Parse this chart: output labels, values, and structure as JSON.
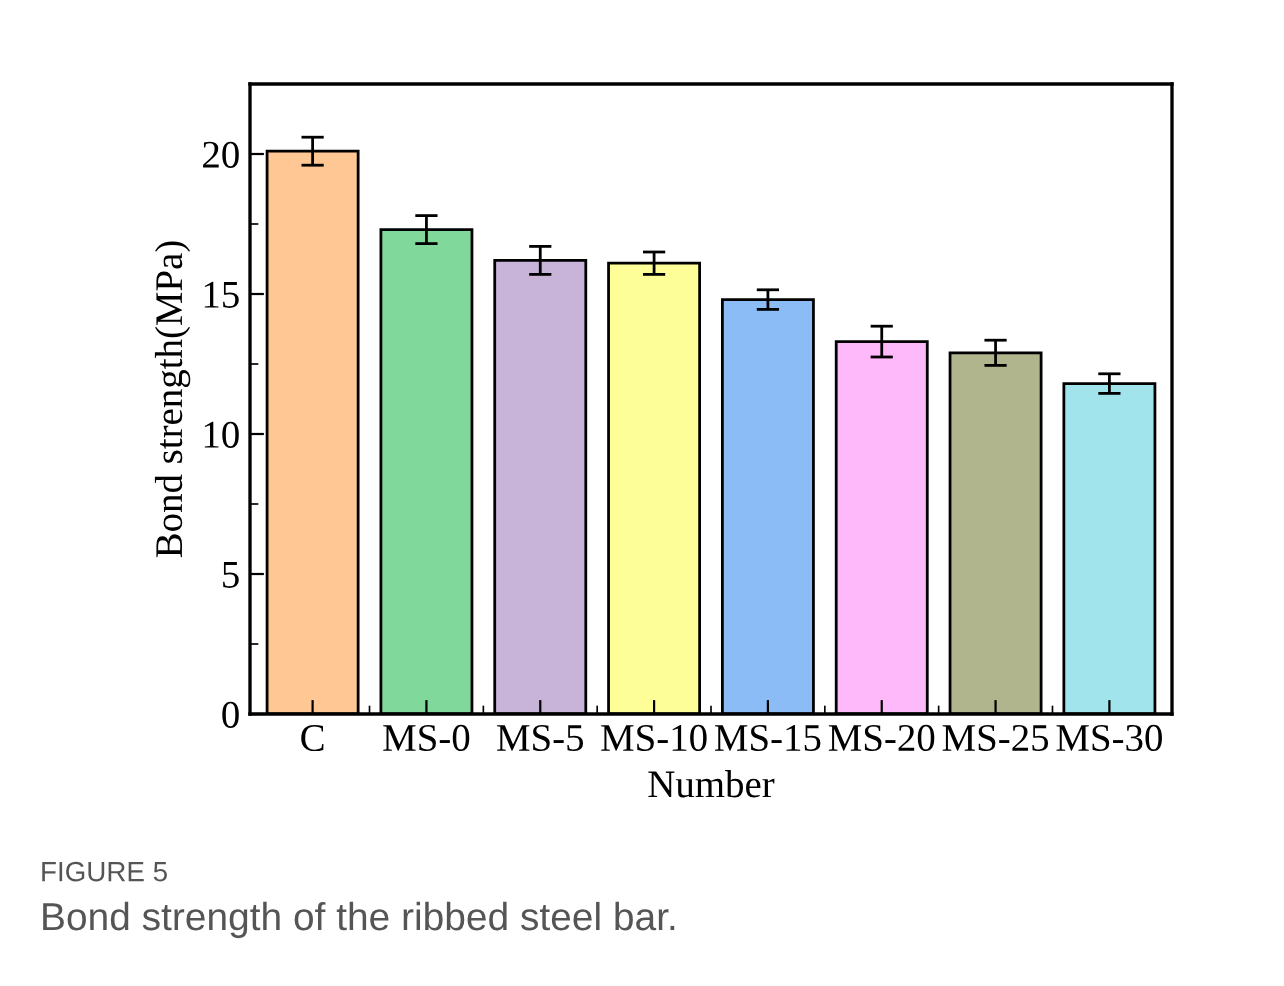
{
  "chart_data": {
    "type": "bar",
    "xlabel": "Number",
    "ylabel": "Bond strength(MPa)",
    "categories": [
      "C",
      "MS-0",
      "MS-5",
      "MS-10",
      "MS-15",
      "MS-20",
      "MS-25",
      "MS-30"
    ],
    "values": [
      20.1,
      17.3,
      16.2,
      16.1,
      14.8,
      13.3,
      12.9,
      11.8
    ],
    "errors": [
      0.5,
      0.5,
      0.5,
      0.4,
      0.35,
      0.55,
      0.45,
      0.35
    ],
    "colors": [
      "#fec794",
      "#80d99a",
      "#c8b3d9",
      "#fefe99",
      "#8bbcf5",
      "#fdb9fa",
      "#b0b58d",
      "#a2e4eb"
    ],
    "ylim": [
      0,
      22.5
    ],
    "yticks": [
      0,
      5,
      10,
      15,
      20
    ],
    "grid": false,
    "legend": false,
    "annotations": [
      "FIGURE 5",
      "Bond strength of the ribbed steel bar."
    ]
  }
}
